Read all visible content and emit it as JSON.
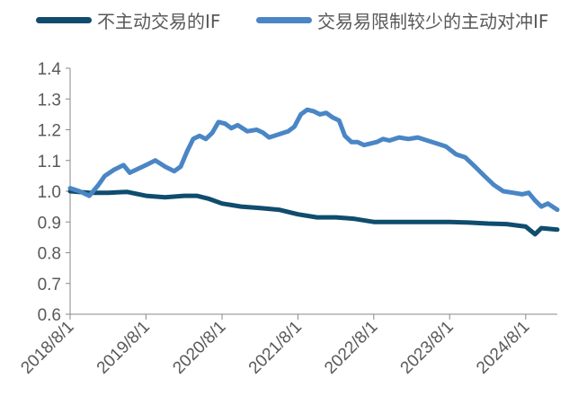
{
  "chart_data": {
    "type": "line",
    "title": "",
    "xlabel": "",
    "ylabel": "",
    "ylim": [
      0.6,
      1.4
    ],
    "yticks": [
      "0.6",
      "0.7",
      "0.8",
      "0.9",
      "1.0",
      "1.1",
      "1.2",
      "1.3",
      "1.4"
    ],
    "xticks": [
      "2018/8/1",
      "2019/8/1",
      "2020/8/1",
      "2021/8/1",
      "2022/8/1",
      "2023/8/1",
      "2024/8/1"
    ],
    "xlim": [
      "2018/8/1",
      "2024/12/31"
    ],
    "legend_position": "top",
    "grid": false,
    "series": [
      {
        "name": "不主动交易的IF",
        "color": "#0f4c6e",
        "points": [
          [
            "2018/8/1",
            1.0
          ],
          [
            "2018/11/1",
            0.995
          ],
          [
            "2019/2/1",
            0.995
          ],
          [
            "2019/5/1",
            0.998
          ],
          [
            "2019/8/1",
            0.985
          ],
          [
            "2019/11/1",
            0.98
          ],
          [
            "2020/2/1",
            0.985
          ],
          [
            "2020/4/1",
            0.985
          ],
          [
            "2020/6/1",
            0.975
          ],
          [
            "2020/8/1",
            0.96
          ],
          [
            "2020/11/1",
            0.95
          ],
          [
            "2021/2/1",
            0.945
          ],
          [
            "2021/5/1",
            0.94
          ],
          [
            "2021/8/1",
            0.925
          ],
          [
            "2021/11/1",
            0.915
          ],
          [
            "2022/2/1",
            0.915
          ],
          [
            "2022/5/1",
            0.91
          ],
          [
            "2022/8/1",
            0.9
          ],
          [
            "2022/11/1",
            0.9
          ],
          [
            "2023/2/1",
            0.9
          ],
          [
            "2023/5/1",
            0.9
          ],
          [
            "2023/8/1",
            0.9
          ],
          [
            "2023/11/1",
            0.898
          ],
          [
            "2024/2/1",
            0.895
          ],
          [
            "2024/5/1",
            0.893
          ],
          [
            "2024/8/1",
            0.885
          ],
          [
            "2024/9/15",
            0.86
          ],
          [
            "2024/10/15",
            0.88
          ],
          [
            "2024/12/31",
            0.875
          ]
        ]
      },
      {
        "name": "交易易限制较少的主动对冲IF",
        "color": "#4a86c5",
        "points": [
          [
            "2018/8/1",
            1.01
          ],
          [
            "2018/9/15",
            1.0
          ],
          [
            "2018/11/1",
            0.985
          ],
          [
            "2018/12/15",
            1.02
          ],
          [
            "2019/1/15",
            1.05
          ],
          [
            "2019/3/1",
            1.07
          ],
          [
            "2019/4/15",
            1.085
          ],
          [
            "2019/5/15",
            1.06
          ],
          [
            "2019/6/15",
            1.07
          ],
          [
            "2019/8/1",
            1.085
          ],
          [
            "2019/9/15",
            1.1
          ],
          [
            "2019/11/1",
            1.08
          ],
          [
            "2019/12/15",
            1.065
          ],
          [
            "2020/1/15",
            1.08
          ],
          [
            "2020/2/15",
            1.13
          ],
          [
            "2020/3/15",
            1.17
          ],
          [
            "2020/4/15",
            1.18
          ],
          [
            "2020/5/15",
            1.17
          ],
          [
            "2020/6/15",
            1.19
          ],
          [
            "2020/7/15",
            1.225
          ],
          [
            "2020/8/15",
            1.22
          ],
          [
            "2020/9/15",
            1.205
          ],
          [
            "2020/10/15",
            1.215
          ],
          [
            "2020/12/1",
            1.195
          ],
          [
            "2021/1/15",
            1.2
          ],
          [
            "2021/2/15",
            1.19
          ],
          [
            "2021/3/15",
            1.175
          ],
          [
            "2021/5/1",
            1.185
          ],
          [
            "2021/6/15",
            1.195
          ],
          [
            "2021/7/15",
            1.21
          ],
          [
            "2021/8/15",
            1.25
          ],
          [
            "2021/9/15",
            1.265
          ],
          [
            "2021/10/15",
            1.26
          ],
          [
            "2021/11/15",
            1.25
          ],
          [
            "2021/12/15",
            1.255
          ],
          [
            "2022/1/15",
            1.24
          ],
          [
            "2022/2/15",
            1.23
          ],
          [
            "2022/3/15",
            1.18
          ],
          [
            "2022/4/15",
            1.16
          ],
          [
            "2022/5/15",
            1.16
          ],
          [
            "2022/6/15",
            1.15
          ],
          [
            "2022/7/15",
            1.155
          ],
          [
            "2022/8/15",
            1.16
          ],
          [
            "2022/9/15",
            1.17
          ],
          [
            "2022/10/15",
            1.165
          ],
          [
            "2022/12/1",
            1.175
          ],
          [
            "2023/1/15",
            1.17
          ],
          [
            "2023/3/1",
            1.175
          ],
          [
            "2023/4/15",
            1.165
          ],
          [
            "2023/6/1",
            1.155
          ],
          [
            "2023/7/15",
            1.145
          ],
          [
            "2023/9/1",
            1.12
          ],
          [
            "2023/10/15",
            1.11
          ],
          [
            "2023/12/1",
            1.08
          ],
          [
            "2024/1/15",
            1.05
          ],
          [
            "2024/3/1",
            1.02
          ],
          [
            "2024/4/15",
            1.0
          ],
          [
            "2024/6/1",
            0.995
          ],
          [
            "2024/7/15",
            0.99
          ],
          [
            "2024/8/15",
            0.995
          ],
          [
            "2024/9/15",
            0.97
          ],
          [
            "2024/10/15",
            0.95
          ],
          [
            "2024/11/15",
            0.96
          ],
          [
            "2024/12/31",
            0.94
          ]
        ]
      }
    ]
  }
}
